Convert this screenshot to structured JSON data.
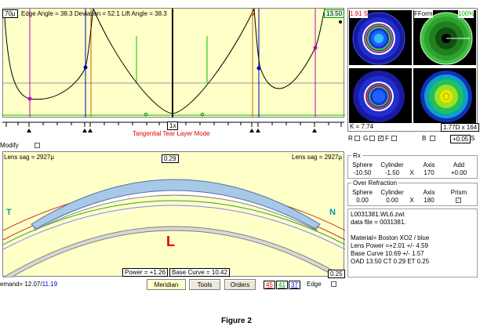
{
  "top_graph": {
    "left_value": "70µ",
    "readout": "Edge Angle = 38.3  Deviation = 52.1  Lift Angle = 38.3",
    "right_value": "13.50",
    "zoom": "1x",
    "mode_title": "Tangential Tear Layer Mode"
  },
  "modify_label": "Modify",
  "cross_section": {
    "left_sag": "Lens sag = 2927µ",
    "right_sag": "Lens sag = 2927µ",
    "center_value": "0.29",
    "letter_t": "T",
    "letter_n": "N",
    "letter_l": "L",
    "power": "Power = +1.26",
    "base_curve": "Base Curve = 10.42",
    "corner_value": "0.25"
  },
  "bottom_bar": {
    "demand_prefix": "emand= 12.07/",
    "demand_value": "11.19",
    "meridian": "Meridian",
    "tools": "Tools",
    "orders": "Orders",
    "num_45": "45",
    "num_41": "41",
    "num_37": "37",
    "edge": "Edge"
  },
  "maps": {
    "top_left_label": "1.91 S",
    "fform_label": "FForm",
    "pct_label": "100%",
    "k_label": "K = 7.74",
    "d_label": "1.77D x 164"
  },
  "checks": {
    "r": "R",
    "g": "G",
    "f": "F",
    "b": "B",
    "s_value": "+0.05",
    "s_label": "S"
  },
  "rx": {
    "title": "Rx",
    "headers": [
      "Sphere",
      "Cylinder",
      "",
      "Axis",
      "Add"
    ],
    "values": [
      "-10.50",
      "-1.50",
      "X",
      "170",
      "+0.00"
    ]
  },
  "over_refraction": {
    "title": "Over Refraction",
    "headers": [
      "Sphere",
      "Cylinder",
      "",
      "Axis",
      "Prism"
    ],
    "values": [
      "0.00",
      "0.00",
      "X",
      "180"
    ]
  },
  "info": {
    "lines": [
      "L0031381.WL6.zwt",
      "data file = 0031381.",
      "",
      "Material= Boston XO2 / blue",
      "Lens Power =+2.01 +/- 4.59",
      "Base Curve 10.69 +/- 1.57",
      "OAD 13.50 CT 0.29 ET 0.25"
    ]
  },
  "caption": "Figure 2",
  "colors": {
    "panel_yellow": "#ffffc8",
    "lens_blue": "#a8c8e8",
    "teal": "#00a0a0",
    "red": "#e00000"
  }
}
